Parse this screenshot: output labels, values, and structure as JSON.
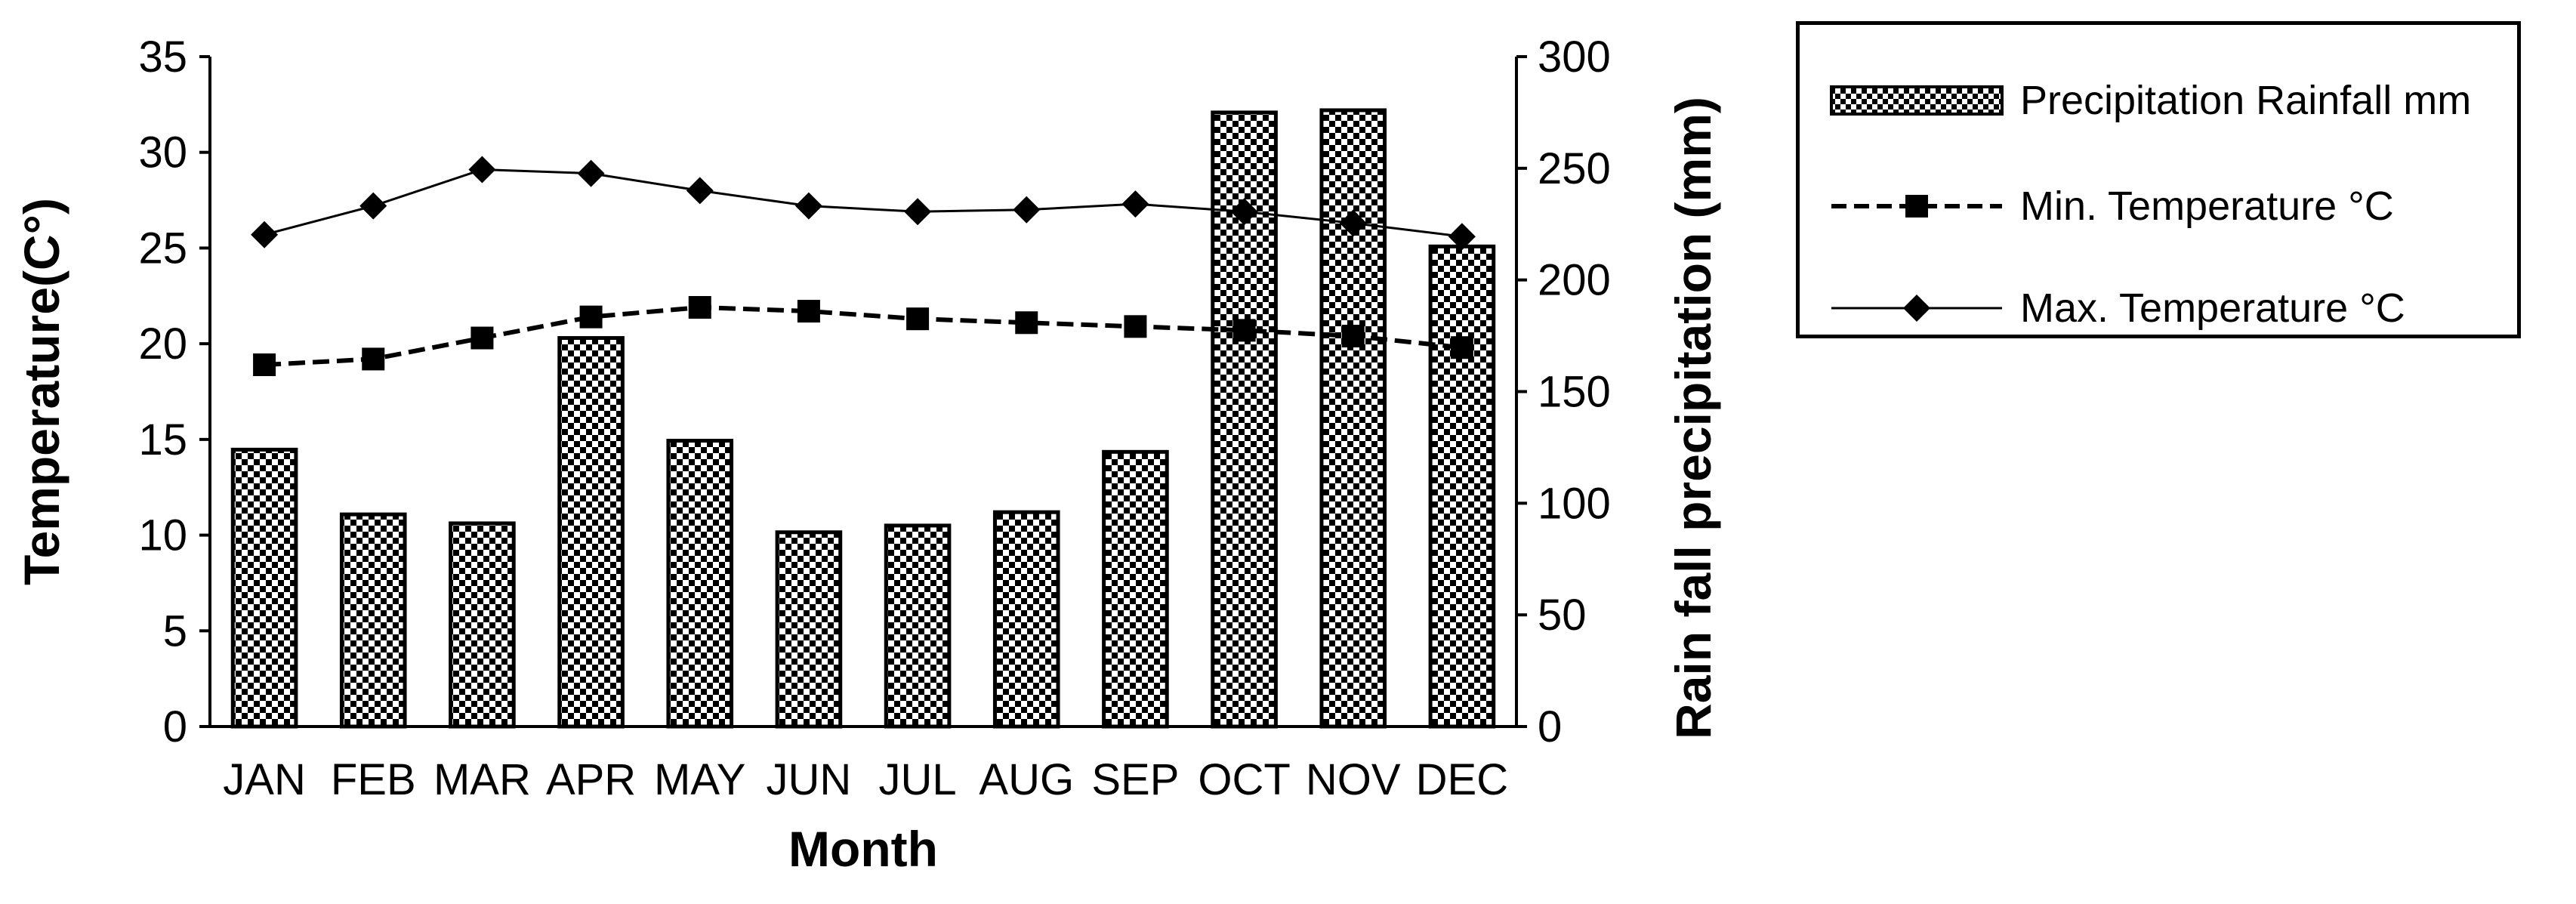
{
  "chart_data": {
    "type": "bar",
    "categories": [
      "JAN",
      "FEB",
      "MAR",
      "APR",
      "MAY",
      "JUN",
      "JUL",
      "AUG",
      "SEP",
      "OCT",
      "NOV",
      "DEC"
    ],
    "xlabel": "Month",
    "ylabel": "Temperature(C°)",
    "y2label": "Rain fall precipitation (mm)",
    "ylim": [
      0,
      35
    ],
    "y2lim": [
      0,
      300
    ],
    "yticks": [
      "0",
      "5",
      "10",
      "15",
      "20",
      "25",
      "30",
      "35"
    ],
    "y2ticks": [
      "0",
      "50",
      "100",
      "150",
      "200",
      "250",
      "300"
    ],
    "grid": false,
    "legend_position": "top-right",
    "series": [
      {
        "name": "Precipitation Rainfall mm",
        "type": "bar",
        "axis": "right",
        "pattern": "checkerboard",
        "values": [
          124,
          95,
          91,
          174,
          128,
          87,
          90,
          96,
          123,
          275,
          276,
          215
        ]
      },
      {
        "name": "Min. Temperature °C",
        "type": "line",
        "axis": "left",
        "line_style": "dashed",
        "marker": "square",
        "values": [
          18.9,
          19.2,
          20.3,
          21.4,
          21.9,
          21.7,
          21.3,
          21.1,
          20.9,
          20.7,
          20.4,
          19.8
        ]
      },
      {
        "name": "Max. Temperature °C",
        "type": "line",
        "axis": "left",
        "line_style": "solid",
        "marker": "diamond",
        "values": [
          25.7,
          27.2,
          29.1,
          28.9,
          28.0,
          27.2,
          26.9,
          27.0,
          27.3,
          26.9,
          26.3,
          25.6
        ]
      }
    ]
  }
}
